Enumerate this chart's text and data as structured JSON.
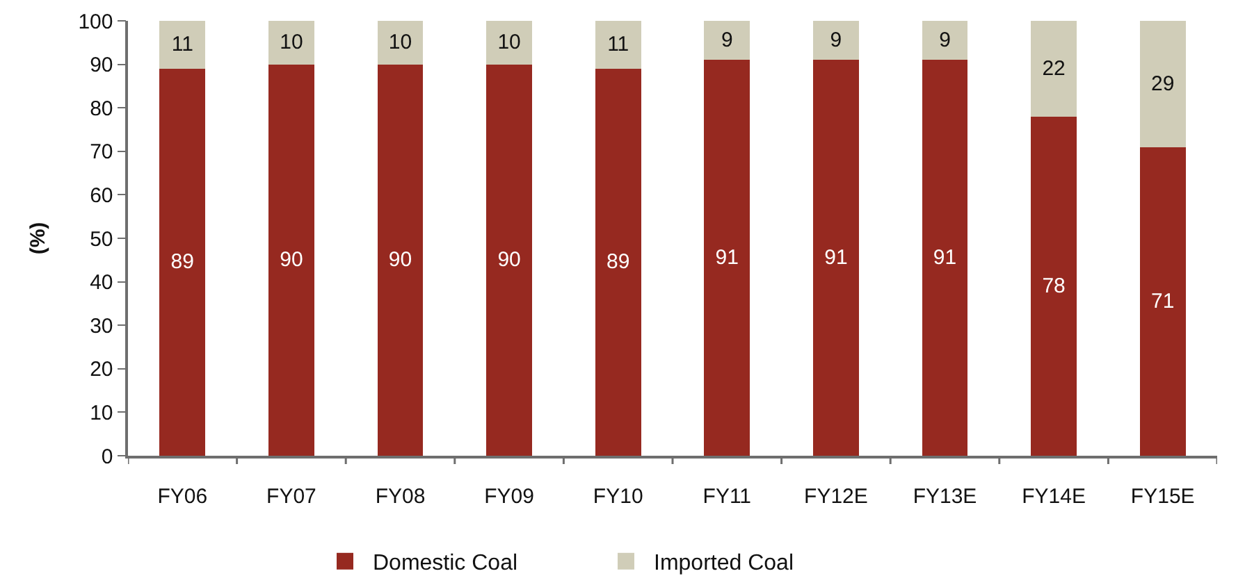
{
  "chart_data": {
    "type": "bar",
    "stacked": true,
    "ylabel": "(%)",
    "categories": [
      "FY06",
      "FY07",
      "FY08",
      "FY09",
      "FY10",
      "FY11",
      "FY12E",
      "FY13E",
      "FY14E",
      "FY15E"
    ],
    "series": [
      {
        "name": "Domestic Coal",
        "color": "#962920",
        "values": [
          89,
          90,
          90,
          90,
          89,
          91,
          91,
          91,
          78,
          71
        ]
      },
      {
        "name": "Imported Coal",
        "color": "#d0cdb8",
        "values": [
          11,
          10,
          10,
          10,
          11,
          9,
          9,
          9,
          22,
          29
        ]
      }
    ],
    "ylim": [
      0,
      100
    ],
    "yticks": [
      0,
      10,
      20,
      30,
      40,
      50,
      60,
      70,
      80,
      90,
      100
    ],
    "data_labels": true,
    "legend": "bottom"
  }
}
